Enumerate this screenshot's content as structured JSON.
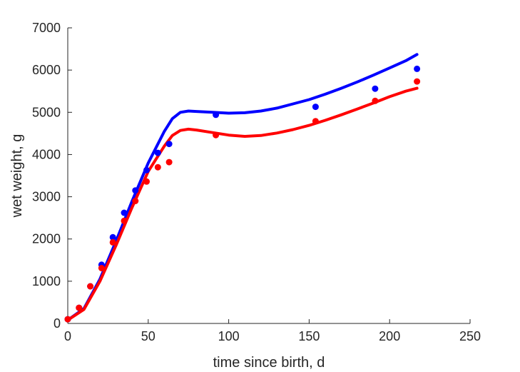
{
  "chart_data": {
    "type": "scatter",
    "title": "",
    "xlabel": "time since birth, d",
    "ylabel": "wet weight, g",
    "xlim": [
      0,
      250
    ],
    "ylim": [
      0,
      7000
    ],
    "xticks": [
      0,
      50,
      100,
      150,
      200,
      250
    ],
    "yticks": [
      0,
      1000,
      2000,
      3000,
      4000,
      5000,
      6000,
      7000
    ],
    "grid": false,
    "legend": "none",
    "series": [
      {
        "kind": "points",
        "color": "#0000ff",
        "x": [
          0,
          7,
          14,
          21,
          28,
          35,
          42,
          49,
          56,
          63,
          92,
          154,
          191,
          217
        ],
        "y": [
          100,
          370,
          880,
          1390,
          2040,
          2620,
          3150,
          3630,
          4040,
          4250,
          4940,
          5130,
          5560,
          6030
        ]
      },
      {
        "kind": "points",
        "color": "#ff0000",
        "x": [
          0,
          7,
          14,
          21,
          28,
          35,
          42,
          49,
          56,
          63,
          92,
          154,
          191,
          217
        ],
        "y": [
          100,
          370,
          880,
          1310,
          1920,
          2430,
          2900,
          3360,
          3700,
          3820,
          4460,
          4790,
          5270,
          5730
        ]
      },
      {
        "kind": "line",
        "color": "#0000ff",
        "x": [
          0,
          10,
          20,
          30,
          40,
          50,
          60,
          65,
          70,
          75,
          80,
          90,
          100,
          110,
          120,
          130,
          140,
          150,
          160,
          170,
          180,
          190,
          200,
          210,
          217
        ],
        "y": [
          80,
          350,
          1050,
          1950,
          2900,
          3800,
          4550,
          4850,
          5000,
          5030,
          5020,
          5000,
          4980,
          4990,
          5030,
          5100,
          5200,
          5300,
          5430,
          5570,
          5720,
          5880,
          6050,
          6220,
          6370
        ]
      },
      {
        "kind": "line",
        "color": "#ff0000",
        "x": [
          0,
          10,
          20,
          30,
          40,
          50,
          60,
          65,
          70,
          75,
          80,
          90,
          100,
          110,
          120,
          130,
          140,
          150,
          160,
          170,
          180,
          190,
          200,
          210,
          217
        ],
        "y": [
          80,
          330,
          1000,
          1850,
          2750,
          3600,
          4200,
          4450,
          4570,
          4600,
          4580,
          4520,
          4460,
          4430,
          4450,
          4510,
          4590,
          4690,
          4810,
          4940,
          5080,
          5220,
          5370,
          5500,
          5570
        ]
      }
    ]
  }
}
